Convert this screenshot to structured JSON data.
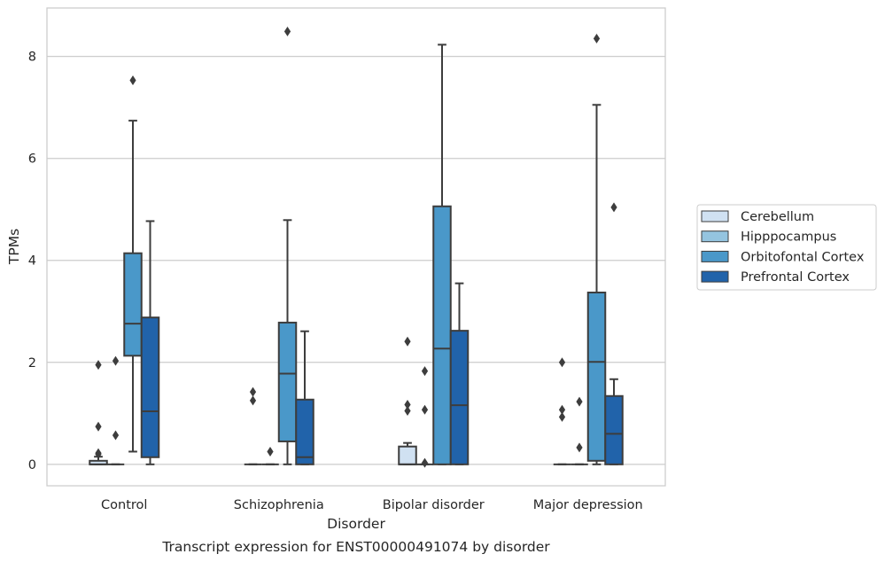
{
  "chart_data": {
    "type": "box",
    "title": "Transcript expression for ENST00000491074 by disorder",
    "xlabel": "Disorder",
    "ylabel": "TPMs",
    "ylim": [
      -0.42,
      8.95
    ],
    "yticks": [
      0,
      2,
      4,
      6,
      8
    ],
    "grid": "horizontal",
    "legend_position": "right",
    "categories": [
      "Control",
      "Schizophrenia",
      "Bipolar disorder",
      "Major depression"
    ],
    "series": [
      {
        "name": "Cerebellum",
        "color": "#d0e1f2",
        "boxes": [
          {
            "q1": 0.0,
            "median": 0.0,
            "q3": 0.07,
            "whislo": 0.0,
            "whishi": 0.15,
            "fliers": [
              0.2,
              0.22,
              0.74,
              1.95
            ]
          },
          {
            "q1": 0.0,
            "median": 0.0,
            "q3": 0.0,
            "whislo": 0.0,
            "whishi": 0.0,
            "fliers": [
              1.25,
              1.42
            ]
          },
          {
            "q1": 0.0,
            "median": 0.0,
            "q3": 0.35,
            "whislo": 0.0,
            "whishi": 0.42,
            "fliers": [
              1.05,
              1.17,
              2.41
            ]
          },
          {
            "q1": 0.0,
            "median": 0.0,
            "q3": 0.0,
            "whislo": 0.0,
            "whishi": 0.0,
            "fliers": [
              0.93,
              1.07,
              2.0
            ]
          }
        ]
      },
      {
        "name": "Hipppocampus",
        "color": "#94c4df",
        "boxes": [
          {
            "q1": 0.0,
            "median": 0.0,
            "q3": 0.0,
            "whislo": 0.0,
            "whishi": 0.0,
            "fliers": [
              0.57,
              2.03
            ]
          },
          {
            "q1": 0.0,
            "median": 0.0,
            "q3": 0.0,
            "whislo": 0.0,
            "whishi": 0.0,
            "fliers": [
              0.25
            ]
          },
          {
            "q1": 0.0,
            "median": 0.0,
            "q3": 0.0,
            "whislo": 0.0,
            "whishi": 0.0,
            "fliers": [
              0.03,
              1.07,
              1.83
            ]
          },
          {
            "q1": 0.0,
            "median": 0.0,
            "q3": 0.0,
            "whislo": 0.0,
            "whishi": 0.0,
            "fliers": [
              0.33,
              1.23
            ]
          }
        ]
      },
      {
        "name": "Orbitofontal Cortex",
        "color": "#4a98c9",
        "boxes": [
          {
            "q1": 2.13,
            "median": 2.76,
            "q3": 4.14,
            "whislo": 0.25,
            "whishi": 6.74,
            "fliers": [
              7.53
            ]
          },
          {
            "q1": 0.45,
            "median": 1.78,
            "q3": 2.78,
            "whislo": 0.0,
            "whishi": 4.79,
            "fliers": [
              8.49
            ]
          },
          {
            "q1": 0.0,
            "median": 2.27,
            "q3": 5.06,
            "whislo": 0.0,
            "whishi": 8.23,
            "fliers": []
          },
          {
            "q1": 0.07,
            "median": 2.01,
            "q3": 3.37,
            "whislo": 0.0,
            "whishi": 7.05,
            "fliers": [
              8.35
            ]
          }
        ]
      },
      {
        "name": "Prefrontal Cortex",
        "color": "#2163aa",
        "boxes": [
          {
            "q1": 0.14,
            "median": 1.04,
            "q3": 2.88,
            "whislo": 0.0,
            "whishi": 4.77,
            "fliers": []
          },
          {
            "q1": 0.0,
            "median": 0.14,
            "q3": 1.27,
            "whislo": 0.0,
            "whishi": 2.61,
            "fliers": []
          },
          {
            "q1": 0.0,
            "median": 1.16,
            "q3": 2.62,
            "whislo": 0.0,
            "whishi": 3.55,
            "fliers": []
          },
          {
            "q1": 0.0,
            "median": 0.6,
            "q3": 1.34,
            "whislo": 0.0,
            "whishi": 1.67,
            "fliers": [
              5.04
            ]
          }
        ]
      }
    ]
  }
}
